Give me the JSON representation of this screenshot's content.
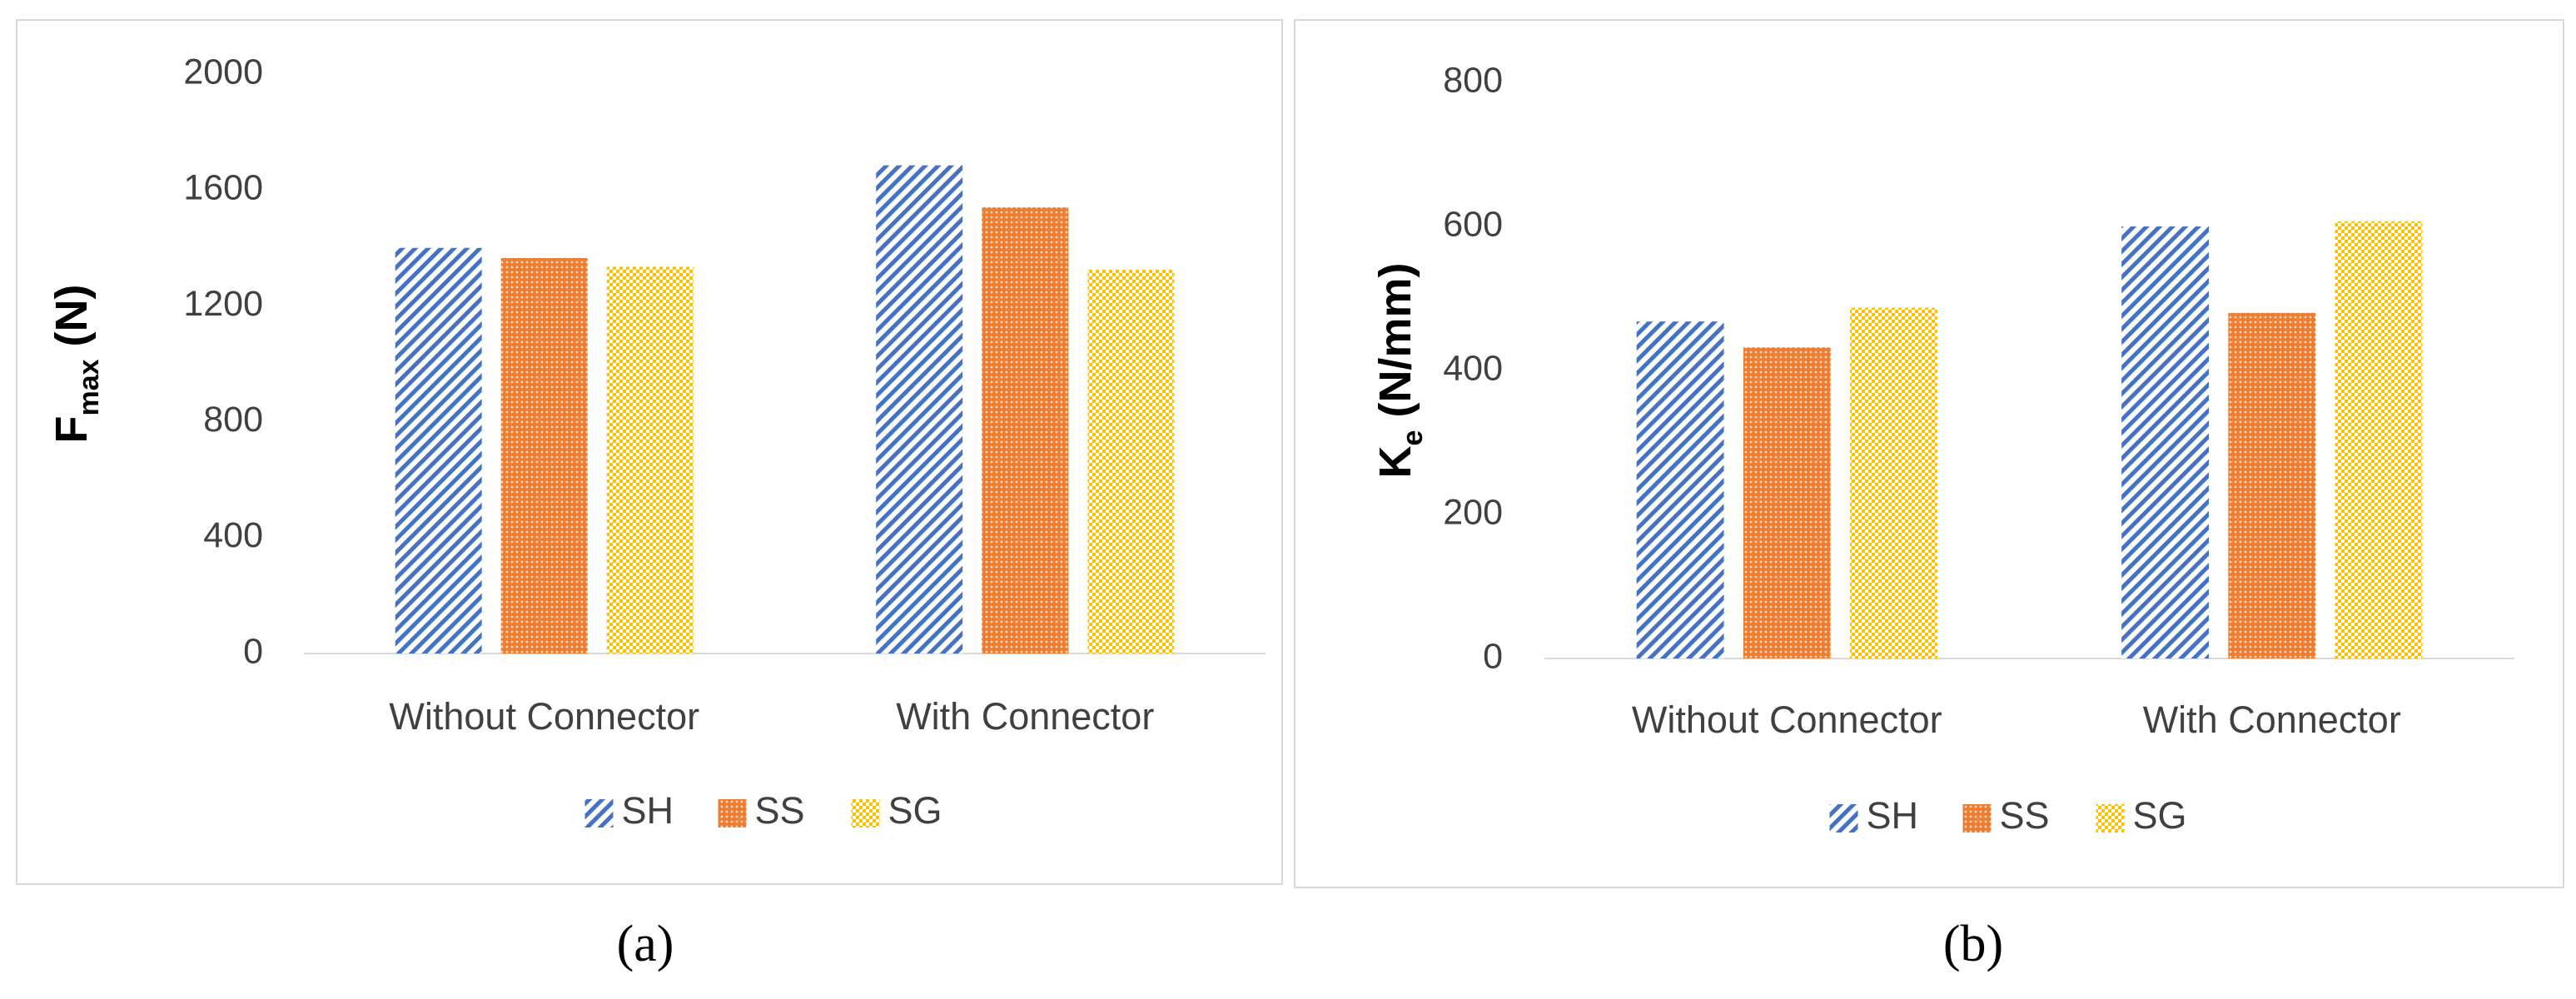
{
  "chart_data": [
    {
      "type": "bar",
      "ylabel_parts": [
        "F",
        "max",
        " (N)"
      ],
      "caption": "(a)",
      "categories": [
        "Without Connector",
        "With Connector"
      ],
      "series": [
        {
          "name": "SH",
          "color": "#4472c4",
          "values": [
            1400,
            1685
          ]
        },
        {
          "name": "SS",
          "color": "#ed7d31",
          "values": [
            1365,
            1540
          ]
        },
        {
          "name": "SG",
          "color": "#ffc000",
          "values": [
            1335,
            1325
          ]
        }
      ],
      "ylim": [
        0,
        2000
      ],
      "yticks": [
        0,
        400,
        800,
        1200,
        1600,
        2000
      ],
      "grid": false,
      "legend": "bottom"
    },
    {
      "type": "bar",
      "ylabel_parts": [
        "K",
        "e",
        " (N/mm)"
      ],
      "caption": "(b)",
      "categories": [
        "Without Connector",
        "With Connector"
      ],
      "series": [
        {
          "name": "SH",
          "color": "#4472c4",
          "values": [
            468,
            600
          ]
        },
        {
          "name": "SS",
          "color": "#ed7d31",
          "values": [
            432,
            480
          ]
        },
        {
          "name": "SG",
          "color": "#ffc000",
          "values": [
            487,
            607
          ]
        }
      ],
      "ylim": [
        0,
        800
      ],
      "yticks": [
        0,
        200,
        400,
        600,
        800
      ],
      "grid": false,
      "legend": "bottom"
    }
  ]
}
